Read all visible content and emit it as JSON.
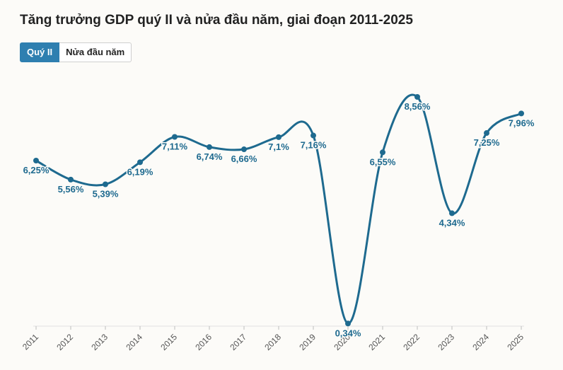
{
  "title": "Tăng trưởng GDP quý II và nửa đầu năm, giai đoạn 2011-2025",
  "tabs": [
    {
      "label": "Quý II",
      "active": true
    },
    {
      "label": "Nửa đầu năm",
      "active": false
    }
  ],
  "colors": {
    "line": "#1e6a8f",
    "label": "#1e6a8f",
    "active_tab": "#2e7fb0"
  },
  "chart_data": {
    "type": "line",
    "title": "Tăng trưởng GDP quý II và nửa đầu năm, giai đoạn 2011-2025",
    "x": [
      "2011",
      "2012",
      "2013",
      "2014",
      "2015",
      "2016",
      "2017",
      "2018",
      "2019",
      "2020",
      "2021",
      "2022",
      "2023",
      "2024",
      "2025"
    ],
    "series": [
      {
        "values": [
          6.25,
          5.56,
          5.39,
          6.19,
          7.11,
          6.74,
          6.66,
          7.1,
          7.16,
          0.34,
          6.55,
          8.56,
          4.34,
          7.25,
          7.96
        ],
        "labels": [
          "6,25%",
          "5,56%",
          "5,39%",
          "6,19%",
          "7,11%",
          "6,74%",
          "6,66%",
          "7,1%",
          "7,16%",
          "0,34%",
          "6,55%",
          "8,56%",
          "4,34%",
          "7,25%",
          "7,96%"
        ]
      }
    ],
    "ylim": [
      0,
      8.56
    ],
    "grid": false,
    "xlabel": "",
    "ylabel": ""
  }
}
